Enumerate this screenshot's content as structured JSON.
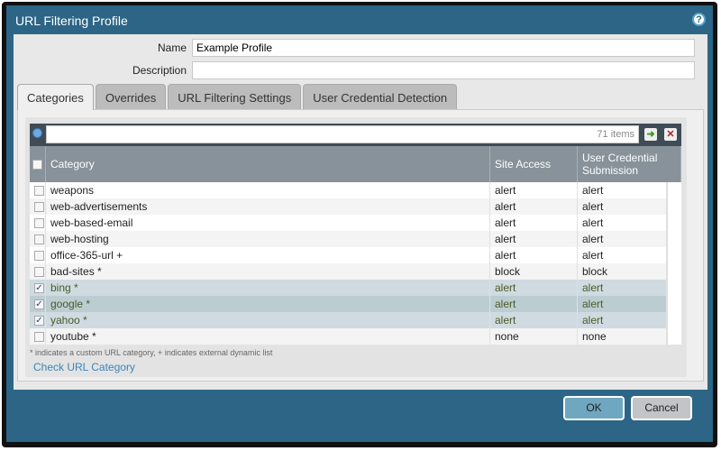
{
  "dialog": {
    "title": "URL Filtering Profile",
    "help_icon": "help-icon"
  },
  "form": {
    "name_label": "Name",
    "name_value": "Example Profile",
    "description_label": "Description",
    "description_value": ""
  },
  "tabs": [
    {
      "label": "Categories",
      "active": true
    },
    {
      "label": "Overrides"
    },
    {
      "label": "URL Filtering Settings"
    },
    {
      "label": "User Credential Detection"
    }
  ],
  "grid": {
    "search_value": "",
    "item_count": "71 items",
    "columns": [
      "Category",
      "Site Access",
      "User Credential Submission"
    ],
    "rows": [
      {
        "category": "weapons",
        "site_access": "alert",
        "credential": "alert",
        "checked": false
      },
      {
        "category": "web-advertisements",
        "site_access": "alert",
        "credential": "alert",
        "checked": false
      },
      {
        "category": "web-based-email",
        "site_access": "alert",
        "credential": "alert",
        "checked": false
      },
      {
        "category": "web-hosting",
        "site_access": "alert",
        "credential": "alert",
        "checked": false
      },
      {
        "category": "office-365-url +",
        "site_access": "alert",
        "credential": "alert",
        "checked": false
      },
      {
        "category": "bad-sites *",
        "site_access": "block",
        "credential": "block",
        "checked": false
      },
      {
        "category": "bing *",
        "site_access": "alert",
        "credential": "alert",
        "checked": true
      },
      {
        "category": "google *",
        "site_access": "alert",
        "credential": "alert",
        "checked": true
      },
      {
        "category": "yahoo *",
        "site_access": "alert",
        "credential": "alert",
        "checked": true
      },
      {
        "category": "youtube *",
        "site_access": "none",
        "credential": "none",
        "checked": false
      }
    ]
  },
  "footnote": "* indicates a custom URL category, + indicates external dynamic list",
  "check_link": "Check URL Category",
  "buttons": {
    "ok": "OK",
    "cancel": "Cancel"
  },
  "colors": {
    "frame": "#2c6585",
    "header": "#87929a",
    "selected_row": "#cfdbe0",
    "link": "#3a86b8"
  }
}
